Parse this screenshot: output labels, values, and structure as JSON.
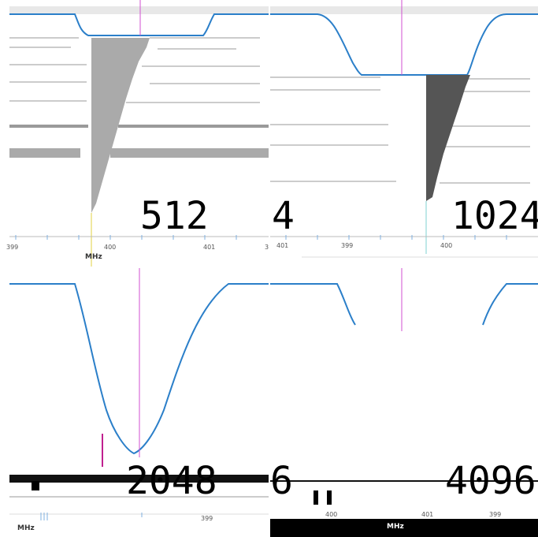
{
  "colors": {
    "curve": "#2b7fc9",
    "center_marker": "#d14fd1",
    "topbar": "#e8e8e8",
    "fill_light": "#aaaaaa",
    "fill_dark": "#555555",
    "scan_line": "#9a9a9a"
  },
  "unit": "MHz",
  "panels": [
    {
      "id": "p512",
      "label": "512",
      "edge_label": "",
      "ticks": [
        "399",
        "400",
        "401"
      ],
      "right_edge_text": "3"
    },
    {
      "id": "p1024",
      "label": "1024",
      "edge_label": "4",
      "ticks": [
        "401",
        "399",
        "400"
      ],
      "right_edge_text": ""
    },
    {
      "id": "p2048",
      "label": "2048",
      "edge_label": "",
      "ticks": [
        "399"
      ],
      "right_edge_text": ""
    },
    {
      "id": "p4096",
      "label": "4096",
      "edge_label": "6",
      "ticks": [
        "400",
        "401",
        "399"
      ],
      "right_edge_text": ""
    }
  ]
}
